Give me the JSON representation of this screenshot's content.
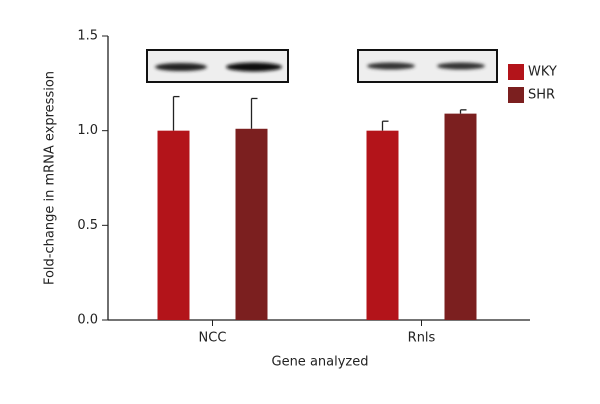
{
  "chart_data": {
    "type": "bar",
    "x_label": "Gene analyzed",
    "y_label": "Fold-change in mRNA expression",
    "categories": [
      "NCC",
      "Rnls"
    ],
    "series": [
      {
        "name": "WKY",
        "color": "#b3141a",
        "values": [
          1.0,
          1.0
        ],
        "errors": [
          0.18,
          0.05
        ]
      },
      {
        "name": "SHR",
        "color": "#7b1f1f",
        "values": [
          1.01,
          1.09
        ],
        "errors": [
          0.16,
          0.02
        ]
      }
    ],
    "ylim": [
      0,
      1.5
    ],
    "yticks": [
      {
        "value": 0,
        "label": "0.0"
      },
      0.5,
      {
        "value": 1,
        "label": "1.0"
      },
      1.5
    ],
    "legend": "right"
  }
}
